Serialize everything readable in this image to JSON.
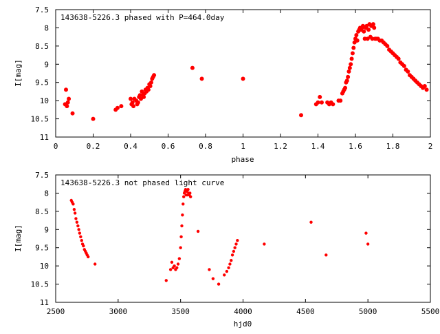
{
  "chart_data": [
    {
      "type": "scatter",
      "title": "143638-5226.3 phased with P=464.0day",
      "xlabel": "phase",
      "ylabel": "I[mag]",
      "xlim": [
        0,
        2
      ],
      "ylim": [
        11,
        7.5
      ],
      "y_inverted": true,
      "x_ticks": [
        "0",
        "0.2",
        "0.4",
        "0.6",
        "0.8",
        "1",
        "1.2",
        "1.4",
        "1.6",
        "1.8",
        "2"
      ],
      "y_ticks": [
        "7.5",
        "8",
        "8.5",
        "9",
        "9.5",
        "10",
        "10.5",
        "11"
      ],
      "grid": false,
      "marker_color": "#ff0000",
      "series": [
        {
          "x": [
            0.05,
            0.055,
            0.06,
            0.065,
            0.07,
            0.09,
            0.2,
            0.32,
            0.33,
            0.35,
            0.4,
            0.405,
            0.41,
            0.415,
            0.42,
            0.43,
            0.435,
            0.44,
            0.445,
            0.45,
            0.455,
            0.46,
            0.465,
            0.47,
            0.475,
            0.48,
            0.485,
            0.49,
            0.495,
            0.5,
            0.505,
            0.51,
            0.515,
            0.52,
            0.525,
            0.73,
            0.78,
            1.0,
            1.31,
            1.39,
            1.4,
            1.41,
            1.42,
            1.45,
            1.46,
            1.47,
            1.48,
            1.51,
            1.52,
            1.53,
            1.535,
            1.54,
            1.545,
            1.55,
            1.555,
            1.56,
            1.565,
            1.57,
            1.575,
            1.58,
            1.585,
            1.59,
            1.595,
            1.6,
            1.605,
            1.61,
            1.615,
            1.62,
            1.625,
            1.63,
            1.635,
            1.64,
            1.645,
            1.65,
            1.655,
            1.66,
            1.665,
            1.67,
            1.675,
            1.68,
            1.685,
            1.69,
            1.695,
            1.7,
            1.705,
            1.71,
            1.72,
            1.73,
            1.74,
            1.75,
            1.76,
            1.77,
            1.78,
            1.79,
            1.8,
            1.81,
            1.82,
            1.83,
            1.84,
            1.85,
            1.86,
            1.87,
            1.88,
            1.89,
            1.9,
            1.91,
            1.92,
            1.93,
            1.94,
            1.95,
            1.96,
            1.97,
            1.98
          ],
          "y": [
            10.1,
            9.7,
            10.15,
            10.05,
            9.95,
            10.35,
            10.5,
            10.25,
            10.2,
            10.15,
            9.95,
            10.1,
            10.05,
            10.15,
            9.95,
            10.0,
            10.1,
            10.05,
            9.9,
            9.85,
            9.95,
            9.75,
            9.85,
            9.9,
            9.8,
            9.7,
            9.75,
            9.65,
            9.7,
            9.55,
            9.6,
            9.5,
            9.4,
            9.35,
            9.3,
            9.1,
            9.4,
            9.4,
            10.4,
            10.1,
            10.05,
            9.9,
            10.05,
            10.05,
            10.1,
            10.05,
            10.1,
            10.0,
            10.0,
            9.8,
            9.75,
            9.7,
            9.65,
            9.5,
            9.45,
            9.35,
            9.2,
            9.1,
            9.0,
            8.85,
            8.7,
            8.55,
            8.4,
            8.3,
            8.2,
            8.35,
            8.1,
            8.05,
            8.0,
            8.05,
            8.0,
            7.95,
            8.1,
            8.3,
            8.0,
            7.95,
            8.3,
            8.05,
            7.9,
            8.25,
            7.95,
            8.3,
            7.9,
            8.0,
            8.3,
            8.3,
            8.3,
            8.35,
            8.35,
            8.4,
            8.45,
            8.5,
            8.6,
            8.65,
            8.7,
            8.75,
            8.8,
            8.85,
            8.95,
            9.0,
            9.05,
            9.15,
            9.2,
            9.3,
            9.35,
            9.4,
            9.45,
            9.5,
            9.55,
            9.6,
            9.65,
            9.6,
            9.7
          ]
        }
      ]
    },
    {
      "type": "scatter",
      "title": "143638-5226.3 not phased light curve",
      "xlabel": "hjd0",
      "ylabel": "I[mag]",
      "xlim": [
        2500,
        5500
      ],
      "ylim": [
        11,
        7.5
      ],
      "y_inverted": true,
      "x_ticks": [
        "2500",
        "3000",
        "3500",
        "4000",
        "4500",
        "5000",
        "5500"
      ],
      "y_ticks": [
        "7.5",
        "8",
        "8.5",
        "9",
        "9.5",
        "10",
        "10.5",
        "11"
      ],
      "grid": false,
      "marker_color": "#ff0000",
      "series": [
        {
          "x": [
            2625,
            2632,
            2640,
            2648,
            2655,
            2662,
            2670,
            2678,
            2685,
            2692,
            2700,
            2708,
            2715,
            2722,
            2730,
            2738,
            2745,
            2752,
            2760,
            2815,
            3385,
            3420,
            3430,
            3440,
            3450,
            3460,
            3470,
            3480,
            3490,
            3500,
            3505,
            3510,
            3515,
            3520,
            3525,
            3530,
            3535,
            3540,
            3545,
            3550,
            3555,
            3560,
            3565,
            3570,
            3575,
            3580,
            3640,
            3730,
            3760,
            3805,
            3850,
            3870,
            3885,
            3895,
            3905,
            3915,
            3925,
            3935,
            3945,
            3955,
            4170,
            4545,
            4665,
            4985,
            5000
          ],
          "y": [
            8.2,
            8.25,
            8.3,
            8.45,
            8.55,
            8.7,
            8.8,
            8.9,
            9.0,
            9.1,
            9.2,
            9.3,
            9.4,
            9.45,
            9.55,
            9.6,
            9.65,
            9.7,
            9.75,
            9.95,
            10.4,
            10.1,
            9.9,
            10.05,
            10.0,
            10.1,
            10.05,
            9.95,
            9.8,
            9.5,
            9.2,
            8.9,
            8.6,
            8.3,
            8.1,
            8.0,
            7.95,
            7.9,
            8.05,
            7.95,
            8.05,
            7.9,
            8.0,
            8.05,
            8.0,
            8.1,
            9.05,
            10.1,
            10.35,
            10.5,
            10.25,
            10.15,
            10.05,
            9.95,
            9.85,
            9.7,
            9.6,
            9.5,
            9.4,
            9.3,
            9.4,
            8.8,
            9.7,
            9.1,
            9.4
          ]
        }
      ]
    }
  ]
}
